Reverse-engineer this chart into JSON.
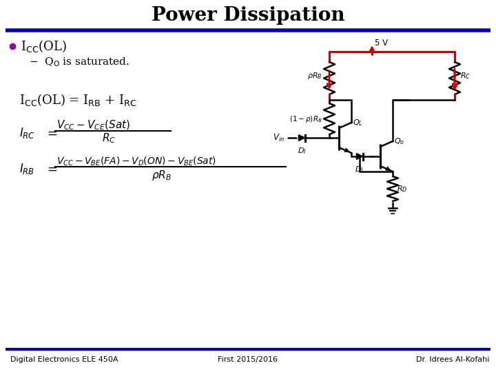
{
  "title": "Power Dissipation",
  "title_fontsize": 20,
  "background_color": "#ffffff",
  "title_bar_color": "#0000cc",
  "bullet_color": "#9900aa",
  "black_color": "#000000",
  "red_color": "#cc0000",
  "footer_left": "Digital Electronics ELE 450A",
  "footer_mid": "First 2015/2016",
  "footer_right": "Dr. Idrees Al-Kofahi",
  "footer_color": "#0000cc"
}
